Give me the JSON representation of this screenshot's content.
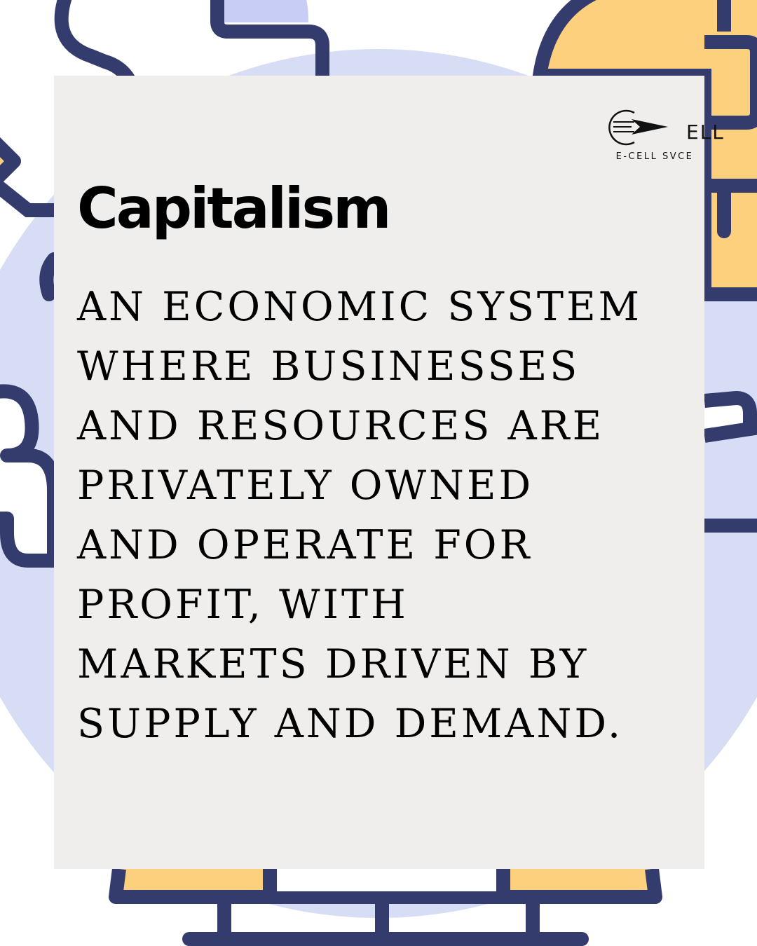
{
  "brand": {
    "logo_word": "ELL",
    "logo_caption": "E-CELL SVCE"
  },
  "post": {
    "title": "Capitalism",
    "definition_lines": [
      "AN ECONOMIC SYSTEM",
      "WHERE BUSINESSES",
      "AND RESOURCES ARE",
      "PRIVATELY OWNED",
      "AND OPERATE FOR",
      "PROFIT, WITH",
      "MARKETS DRIVEN BY",
      "SUPPLY AND DEMAND."
    ]
  },
  "colors": {
    "navy_outline": "#343c6e",
    "lavender_circle": "#d6ddf4",
    "amber_fill": "#fdd07e",
    "card_background": "#efeeec",
    "text": "#000000"
  },
  "icons": {
    "background": "flat-line-illustration",
    "logo_mark": "paper-plane-circle-icon"
  }
}
